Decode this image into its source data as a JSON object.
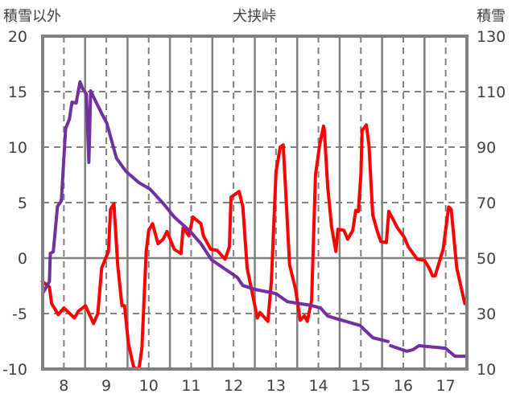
{
  "chart_data": {
    "type": "line",
    "title": "犬挟峠",
    "ylabel_left": "積雪以外",
    "ylabel_right": "積雪",
    "xlim": [
      7.5,
      17.5
    ],
    "ylim_left": [
      -10,
      20
    ],
    "ylim_right": [
      10,
      130
    ],
    "x_ticks": [
      "8",
      "9",
      "10",
      "11",
      "12",
      "13",
      "14",
      "15",
      "16",
      "17"
    ],
    "x_tick_values": [
      8,
      9,
      10,
      11,
      12,
      13,
      14,
      15,
      16,
      17
    ],
    "left_ticks": [
      20,
      15,
      10,
      5,
      0,
      -5,
      -10
    ],
    "left_tick_labels": [
      "20",
      "15",
      "10",
      "5",
      "0",
      "-5",
      "-10"
    ],
    "right_tick_labels": [
      "130",
      "110",
      "90",
      "70",
      "50",
      "30",
      "10"
    ],
    "grid": true,
    "series": [
      {
        "name": "積雪以外",
        "axis": "left",
        "color": "#ff0000",
        "x": [
          7.49,
          7.66,
          7.71,
          7.87,
          8.0,
          8.25,
          8.34,
          8.51,
          8.7,
          8.8,
          8.89,
          9.05,
          9.1,
          9.18,
          9.27,
          9.37,
          9.43,
          9.52,
          9.65,
          9.77,
          9.84,
          9.94,
          10.0,
          10.09,
          10.22,
          10.34,
          10.43,
          10.6,
          10.76,
          10.81,
          10.95,
          11.04,
          11.23,
          11.29,
          11.46,
          11.61,
          11.8,
          11.9,
          11.94,
          12.13,
          12.22,
          12.32,
          12.56,
          12.62,
          12.81,
          12.89,
          13.0,
          13.1,
          13.17,
          13.23,
          13.32,
          13.46,
          13.57,
          13.67,
          13.74,
          13.84,
          13.93,
          14.03,
          14.12,
          14.14,
          14.22,
          14.31,
          14.41,
          14.46,
          14.6,
          14.69,
          14.81,
          14.88,
          14.94,
          15.0,
          15.03,
          15.13,
          15.19,
          15.28,
          15.38,
          15.47,
          15.6,
          15.66,
          15.76,
          15.85,
          16.02,
          16.12,
          16.33,
          16.5,
          16.61,
          16.69,
          16.75,
          16.94,
          17.07,
          17.13,
          17.26,
          17.45
        ],
        "y": [
          -2.1,
          -2.6,
          -4.1,
          -5.1,
          -4.5,
          -5.4,
          -4.8,
          -4.3,
          -5.9,
          -5.0,
          -0.9,
          0.6,
          4.4,
          4.9,
          -0.7,
          -4.3,
          -4.3,
          -7.7,
          -9.9,
          -10.0,
          -8.1,
          0.6,
          2.5,
          3.1,
          1.3,
          1.7,
          2.4,
          0.8,
          0.4,
          2.7,
          2.0,
          3.7,
          3.1,
          2.0,
          0.8,
          0.7,
          -0.1,
          1.0,
          5.5,
          6.0,
          4.6,
          -0.9,
          -5.4,
          -4.9,
          -5.7,
          -2.1,
          7.8,
          10.0,
          10.2,
          5.9,
          -0.6,
          -2.8,
          -5.6,
          -5.2,
          -5.7,
          -3.8,
          7.5,
          10.2,
          11.9,
          11.5,
          6.4,
          2.8,
          0.6,
          2.6,
          2.5,
          1.7,
          2.5,
          4.3,
          4.2,
          7.5,
          11.5,
          12.0,
          10.2,
          3.9,
          2.5,
          1.5,
          1.4,
          4.2,
          3.5,
          2.8,
          1.9,
          1.0,
          -0.1,
          -0.2,
          -0.9,
          -1.6,
          -1.6,
          0.8,
          4.6,
          4.4,
          -0.9,
          -4.1
        ]
      },
      {
        "name": "積雪",
        "axis": "right",
        "color": "#7030a0",
        "x": [
          7.52,
          7.66,
          7.68,
          7.75,
          7.85,
          7.94,
          8.04,
          8.13,
          8.19,
          8.29,
          8.38,
          8.44,
          8.53,
          8.59,
          8.63,
          8.76,
          8.91,
          9.01,
          9.24,
          9.46,
          9.77,
          10.03,
          10.34,
          10.6,
          10.98,
          11.23,
          11.48,
          11.86,
          12.09,
          12.22,
          12.51,
          13.0,
          13.27,
          13.84,
          14.05,
          14.22,
          14.46,
          14.98,
          15.28,
          15.64,
          null,
          15.7,
          16.08,
          16.23,
          16.37,
          16.99,
          17.22,
          17.45
        ],
        "y": [
          37.8,
          41.6,
          51.7,
          52.3,
          68.6,
          70.6,
          96.7,
          100.1,
          106.2,
          105.9,
          113.5,
          111.2,
          109.1,
          84.5,
          110.3,
          106.2,
          101.6,
          98.7,
          86.0,
          81.3,
          77.2,
          74.9,
          69.7,
          64.8,
          59.6,
          55.2,
          49.4,
          45.4,
          43.0,
          40.1,
          38.7,
          37.2,
          34.3,
          32.9,
          32.0,
          29.1,
          28.0,
          25.7,
          21.3,
          19.9,
          null,
          18.4,
          16.4,
          17.0,
          18.4,
          17.5,
          14.6,
          14.6
        ]
      }
    ]
  }
}
